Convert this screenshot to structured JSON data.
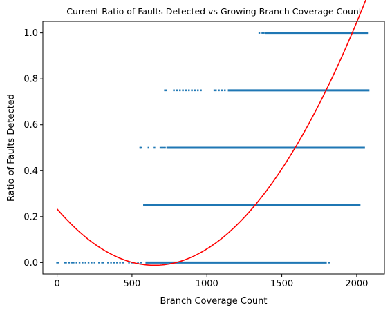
{
  "chart_data": {
    "type": "scatter",
    "title": "Current Ratio of Faults Detected vs Growing Branch Coverage Count",
    "xlabel": "Branch Coverage Count",
    "ylabel": "Ratio of Faults Detected",
    "xlim": [
      -95,
      2185
    ],
    "ylim": [
      -0.05,
      1.05
    ],
    "xticks": [
      0,
      500,
      1000,
      1500,
      2000
    ],
    "yticks": [
      0.0,
      0.2,
      0.4,
      0.6,
      0.8,
      1.0
    ],
    "xtick_labels": [
      "0",
      "500",
      "1000",
      "1500",
      "2000"
    ],
    "ytick_labels": [
      "0.0",
      "0.2",
      "0.4",
      "0.6",
      "0.8",
      "1.0"
    ],
    "grid": false,
    "series": [
      {
        "kind": "scatter",
        "color": "#1f77b4",
        "levels": [
          {
            "y": 0.0,
            "x_dense": [
              590,
              1800
            ],
            "x_sparse": [
              0,
              10,
              50,
              60,
              80,
              100,
              110,
              130,
              150,
              170,
              190,
              210,
              230,
              250,
              280,
              300,
              310,
              340,
              360,
              380,
              400,
              420,
              440,
              480,
              500,
              510,
              540,
              560,
              1815
            ]
          },
          {
            "y": 0.25,
            "x_dense": [
              585,
              2025
            ],
            "x_sparse": [
              580,
              590,
              600,
              610,
              620,
              640
            ]
          },
          {
            "y": 0.5,
            "x_dense": [
              730,
              2055
            ],
            "x_sparse": [
              555,
              560,
              610,
              650,
              690,
              700,
              710,
              720
            ]
          },
          {
            "y": 0.75,
            "x_dense": [
              1140,
              2085
            ],
            "x_sparse": [
              720,
              730,
              780,
              800,
              820,
              840,
              860,
              880,
              900,
              920,
              940,
              960,
              1050,
              1060,
              1080,
              1100,
              1120
            ]
          },
          {
            "y": 1.0,
            "x_dense": [
              1390,
              2080
            ],
            "x_sparse": [
              1350,
              1370,
              1380
            ]
          }
        ]
      },
      {
        "kind": "line",
        "color": "#ff0000",
        "x_range": [
          0,
          2085
        ],
        "vertex": [
          650,
          -0.012
        ],
        "endpoints": [
          [
            0,
            0.27
          ],
          [
            2085,
            1.005
          ]
        ]
      }
    ]
  }
}
